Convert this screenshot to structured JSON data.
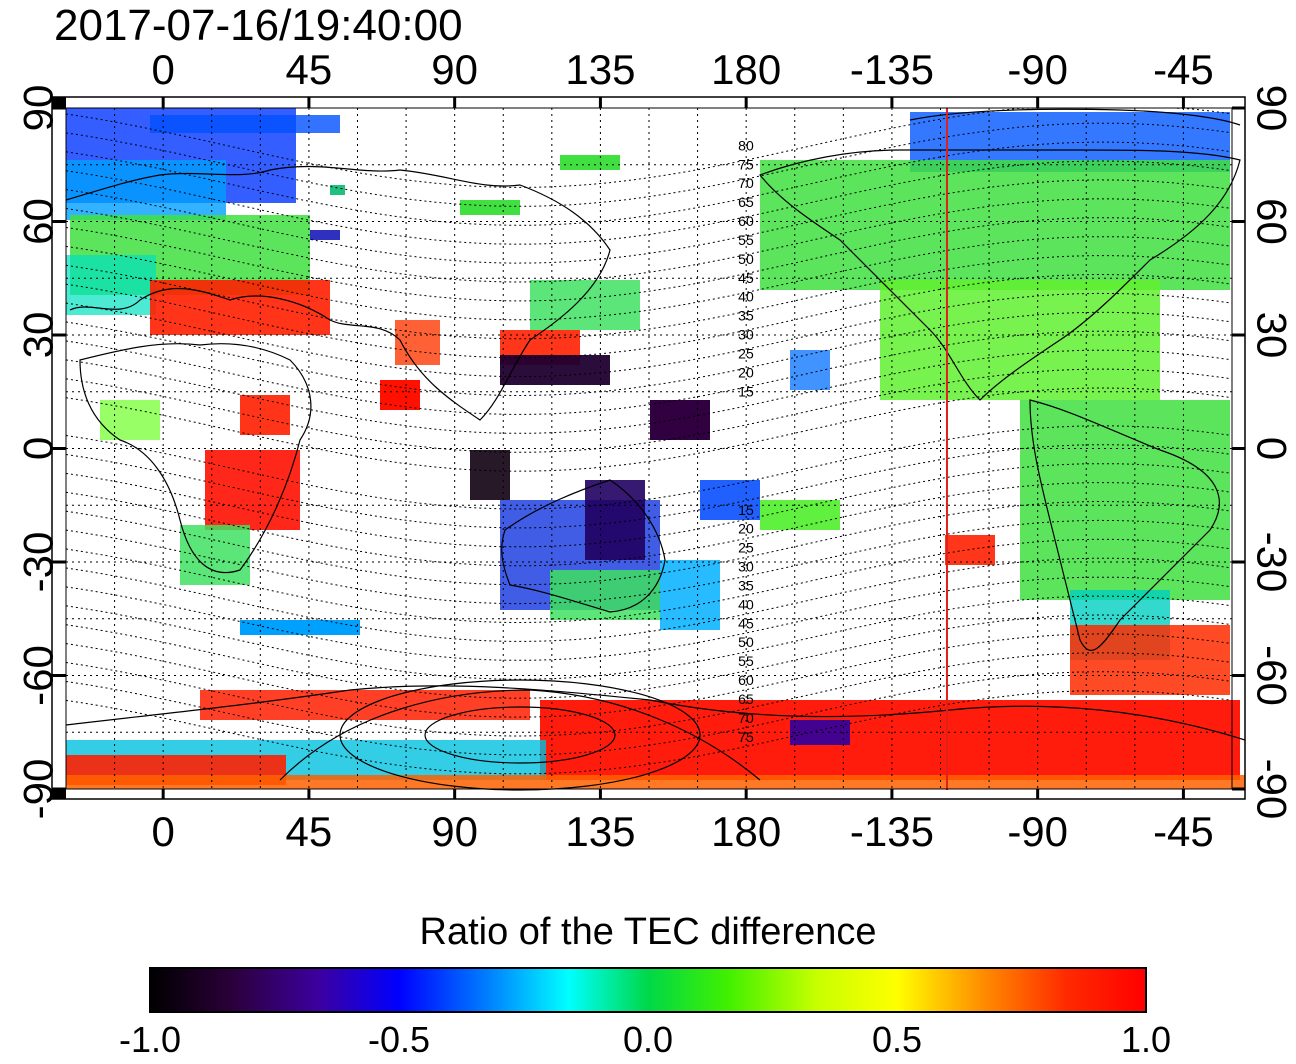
{
  "title": "2017-07-16/19:40:00",
  "map": {
    "projection": "equirectangular",
    "center_longitude": 150,
    "longitude_range": [
      -30,
      330
    ],
    "latitude_range": [
      -90,
      90
    ],
    "lon_ticks": [
      0,
      45,
      90,
      135,
      180,
      225,
      270,
      315
    ],
    "lon_tick_labels": [
      "0",
      "45",
      "90",
      "135",
      "180",
      "-135",
      "-90",
      "-45"
    ],
    "lat_ticks": [
      90,
      60,
      30,
      0,
      -30,
      -60,
      -90
    ],
    "lat_tick_labels": [
      "90",
      "60",
      "30",
      "0",
      "-30",
      "-60",
      "-90"
    ],
    "grid_lines": "dotted",
    "midnight_meridian_lon": -118,
    "midnight_meridian_color": "#e0201a",
    "magnetic_latitude_labels": {
      "north": [
        "80",
        "75",
        "70",
        "65",
        "60",
        "55",
        "50",
        "45",
        "40",
        "35",
        "30",
        "25",
        "20",
        "15"
      ],
      "south": [
        "15",
        "20",
        "25",
        "30",
        "35",
        "40",
        "45",
        "50",
        "55",
        "60",
        "65",
        "70",
        "75"
      ]
    }
  },
  "colorbar": {
    "title": "Ratio of the TEC difference",
    "min": -1.0,
    "max": 1.0,
    "tick_values": [
      -1.0,
      -0.5,
      0.0,
      0.5,
      1.0
    ],
    "tick_labels": [
      "-1.0",
      "-0.5",
      "0.0",
      "0.5",
      "1.0"
    ],
    "colors": [
      "#000000",
      "#3a0050",
      "#4b00c8",
      "#0000ff",
      "#0096ff",
      "#00ffff",
      "#00e060",
      "#00ff00",
      "#aaff00",
      "#ffff00",
      "#ffa000",
      "#ff4000",
      "#ff0000"
    ]
  },
  "colors": {
    "land_outline": "#000000",
    "grid": "#000000",
    "frame": "#000000"
  }
}
